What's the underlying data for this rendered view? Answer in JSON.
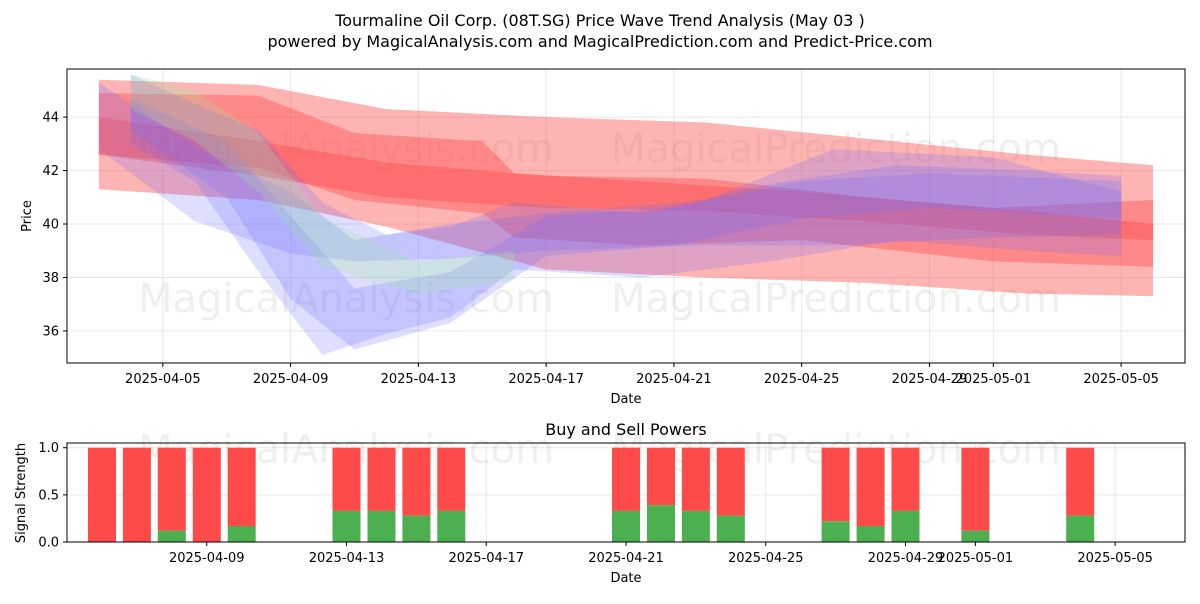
{
  "header": {
    "title": "Tourmaline Oil Corp. (08T.SG) Price Wave Trend Analysis (May 03 )",
    "subtitle": "powered by MagicalAnalysis.com and MagicalPrediction.com and Predict-Price.com"
  },
  "watermarks": [
    "MagicalAnalysis.com",
    "MagicalPrediction.com"
  ],
  "colors": {
    "sell": "#ff4a4a",
    "buy": "#4caf50",
    "band_red": "#ff4d4d",
    "band_blue": "#6b6bff",
    "band_green": "#9be89b"
  },
  "chart_data": [
    {
      "type": "area",
      "xlabel": "Date",
      "ylabel": "Price",
      "xlim": [
        "2025-04-02",
        "2025-05-07"
      ],
      "ylim": [
        34.8,
        45.8
      ],
      "yticks": [
        36,
        38,
        40,
        42,
        44
      ],
      "xticks": [
        "2025-04-05",
        "2025-04-09",
        "2025-04-13",
        "2025-04-17",
        "2025-04-21",
        "2025-04-25",
        "2025-04-29",
        "2025-05-01",
        "2025-05-05"
      ],
      "grid": true,
      "bands": [
        {
          "color": "red",
          "x": [
            "2025-04-03",
            "2025-04-08",
            "2025-04-12",
            "2025-04-17",
            "2025-04-22",
            "2025-04-27",
            "2025-05-02",
            "2025-05-06"
          ],
          "upper": [
            45.4,
            45.2,
            44.3,
            44.0,
            43.8,
            43.2,
            42.6,
            42.2
          ],
          "lower": [
            41.3,
            40.9,
            39.9,
            38.3,
            38.0,
            37.8,
            37.4,
            37.3
          ]
        },
        {
          "color": "red",
          "x": [
            "2025-04-03",
            "2025-04-08",
            "2025-04-11",
            "2025-04-15",
            "2025-04-16",
            "2025-04-20",
            "2025-04-25",
            "2025-05-01",
            "2025-05-06"
          ],
          "upper": [
            44.9,
            44.8,
            43.4,
            43.1,
            41.9,
            41.6,
            41.2,
            40.6,
            40.9
          ],
          "lower": [
            42.6,
            42.1,
            40.9,
            40.4,
            39.5,
            39.2,
            39.4,
            38.6,
            38.4
          ]
        },
        {
          "color": "red",
          "x": [
            "2025-04-03",
            "2025-04-08",
            "2025-04-12",
            "2025-04-17",
            "2025-04-22",
            "2025-04-27",
            "2025-05-02",
            "2025-05-06"
          ],
          "upper": [
            44.0,
            43.1,
            42.3,
            41.8,
            41.7,
            41.0,
            40.5,
            40.0
          ],
          "lower": [
            42.6,
            41.8,
            41.0,
            40.6,
            40.5,
            40.1,
            39.6,
            39.4
          ]
        },
        {
          "color": "blue",
          "x": [
            "2025-04-04",
            "2025-04-06",
            "2025-04-08",
            "2025-04-10",
            "2025-04-12",
            "2025-04-14",
            "2025-04-16",
            "2025-04-20",
            "2025-04-24",
            "2025-04-28",
            "2025-05-02",
            "2025-05-05"
          ],
          "upper": [
            45.6,
            44.5,
            43.5,
            40.8,
            39.6,
            39.9,
            40.8,
            40.4,
            41.5,
            42.2,
            42.0,
            41.8
          ],
          "lower": [
            43.0,
            41.6,
            38.2,
            35.1,
            35.9,
            36.5,
            38.3,
            38.0,
            38.6,
            39.4,
            39.0,
            38.8
          ]
        },
        {
          "color": "blue",
          "x": [
            "2025-04-04",
            "2025-04-07",
            "2025-04-09",
            "2025-04-11",
            "2025-04-14",
            "2025-04-17",
            "2025-04-21",
            "2025-04-25",
            "2025-04-29",
            "2025-05-05"
          ],
          "upper": [
            44.7,
            43.1,
            40.3,
            37.6,
            38.2,
            40.3,
            40.6,
            41.6,
            41.9,
            41.6
          ],
          "lower": [
            43.5,
            41.0,
            37.2,
            35.3,
            36.3,
            38.8,
            39.2,
            40.2,
            40.6,
            40.2
          ]
        },
        {
          "color": "blue",
          "x": [
            "2025-04-03",
            "2025-04-06",
            "2025-04-09",
            "2025-04-11",
            "2025-04-14",
            "2025-04-17",
            "2025-04-22",
            "2025-04-26",
            "2025-05-01",
            "2025-05-05"
          ],
          "upper": [
            45.3,
            42.9,
            41.2,
            39.4,
            40.0,
            40.4,
            40.9,
            42.8,
            42.5,
            41.2
          ],
          "lower": [
            42.8,
            40.1,
            38.9,
            38.6,
            38.7,
            39.0,
            39.2,
            39.2,
            39.5,
            39.6
          ]
        },
        {
          "color": "green",
          "x": [
            "2025-04-04",
            "2025-04-06",
            "2025-04-08",
            "2025-04-10",
            "2025-04-13",
            "2025-04-16"
          ],
          "upper": [
            45.6,
            45.0,
            43.4,
            40.2,
            38.6,
            39.0
          ],
          "lower": [
            44.3,
            43.1,
            41.2,
            38.4,
            37.4,
            37.9
          ]
        }
      ]
    },
    {
      "type": "bar",
      "title": "Buy and Sell Powers",
      "xlabel": "Date",
      "ylabel": "Signal Strength",
      "xlim": [
        "2025-04-05",
        "2025-05-07"
      ],
      "ylim": [
        0,
        1.05
      ],
      "yticks": [
        0.0,
        0.5,
        1.0
      ],
      "xticks": [
        "2025-04-09",
        "2025-04-13",
        "2025-04-17",
        "2025-04-21",
        "2025-04-25",
        "2025-04-29",
        "2025-05-01",
        "2025-05-05"
      ],
      "grid": true,
      "categories": [
        "2025-04-06",
        "2025-04-07",
        "2025-04-08",
        "2025-04-09",
        "2025-04-10",
        "2025-04-13",
        "2025-04-14",
        "2025-04-15",
        "2025-04-16",
        "2025-04-21",
        "2025-04-22",
        "2025-04-23",
        "2025-04-24",
        "2025-04-27",
        "2025-04-28",
        "2025-04-29",
        "2025-05-01",
        "2025-05-04"
      ],
      "series": [
        {
          "name": "Buy",
          "values": [
            0.0,
            0.0,
            0.12,
            0.0,
            0.17,
            0.33,
            0.33,
            0.28,
            0.33,
            0.33,
            0.39,
            0.33,
            0.28,
            0.22,
            0.17,
            0.33,
            0.12,
            0.28
          ]
        },
        {
          "name": "Sell",
          "values": [
            1.0,
            1.0,
            0.88,
            1.0,
            0.83,
            0.67,
            0.67,
            0.72,
            0.67,
            0.67,
            0.61,
            0.67,
            0.72,
            0.78,
            0.83,
            0.67,
            0.88,
            0.72
          ]
        }
      ]
    }
  ]
}
